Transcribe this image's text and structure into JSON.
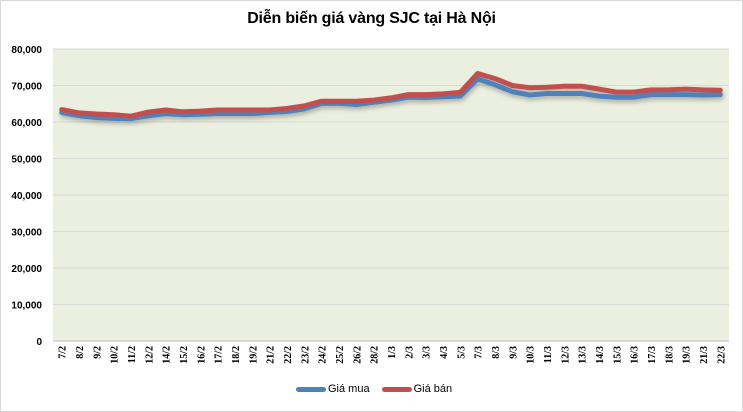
{
  "chart_data": {
    "type": "line",
    "title": "Diễn biến giá vàng SJC tại Hà Nội",
    "xlabel": "",
    "ylabel": "",
    "ylim": [
      0,
      80000
    ],
    "yticks": [
      0,
      10000,
      20000,
      30000,
      40000,
      50000,
      60000,
      70000,
      80000
    ],
    "ytick_labels": [
      "0",
      "10,000",
      "20,000",
      "30,000",
      "40,000",
      "50,000",
      "60,000",
      "70,000",
      "80,000"
    ],
    "grid": true,
    "legend_position": "bottom",
    "plot_background": "#ebefdf",
    "categories": [
      "7/2",
      "8/2",
      "9/2",
      "10/2",
      "11/2",
      "12/2",
      "14/2",
      "15/2",
      "16/2",
      "17/2",
      "18/2",
      "19/2",
      "21/2",
      "22/2",
      "23/2",
      "24/2",
      "25/2",
      "26/2",
      "28/2",
      "1/3",
      "2/3",
      "3/3",
      "4/3",
      "5/3",
      "7/3",
      "8/3",
      "9/3",
      "10/3",
      "11/3",
      "12/3",
      "13/3",
      "14/3",
      "15/3",
      "16/3",
      "17/3",
      "18/3",
      "19/3",
      "21/3",
      "22/3"
    ],
    "series": [
      {
        "name": "Giá mua",
        "color": "#4f81bd",
        "values": [
          62600,
          61700,
          61200,
          61000,
          60900,
          61700,
          62300,
          62000,
          62100,
          62300,
          62300,
          62300,
          62600,
          62900,
          63600,
          65100,
          65100,
          64800,
          65400,
          66000,
          66800,
          66700,
          66900,
          67100,
          71800,
          70200,
          68300,
          67400,
          67800,
          67800,
          67800,
          67100,
          66800,
          66800,
          67500,
          67500,
          67500,
          67400,
          67500
        ]
      },
      {
        "name": "Giá bán",
        "color": "#c0504d",
        "values": [
          63400,
          62500,
          62200,
          62000,
          61600,
          62700,
          63300,
          62800,
          63000,
          63300,
          63300,
          63300,
          63300,
          63700,
          64400,
          65700,
          65700,
          65700,
          66000,
          66600,
          67500,
          67500,
          67700,
          68100,
          73300,
          71900,
          70000,
          69400,
          69500,
          69800,
          69800,
          69000,
          68200,
          68200,
          68800,
          68800,
          69000,
          68800,
          68700
        ]
      }
    ]
  },
  "legend": {
    "items": [
      {
        "label": "Giá mua",
        "color": "#4f81bd"
      },
      {
        "label": "Giá bán",
        "color": "#c0504d"
      }
    ]
  }
}
